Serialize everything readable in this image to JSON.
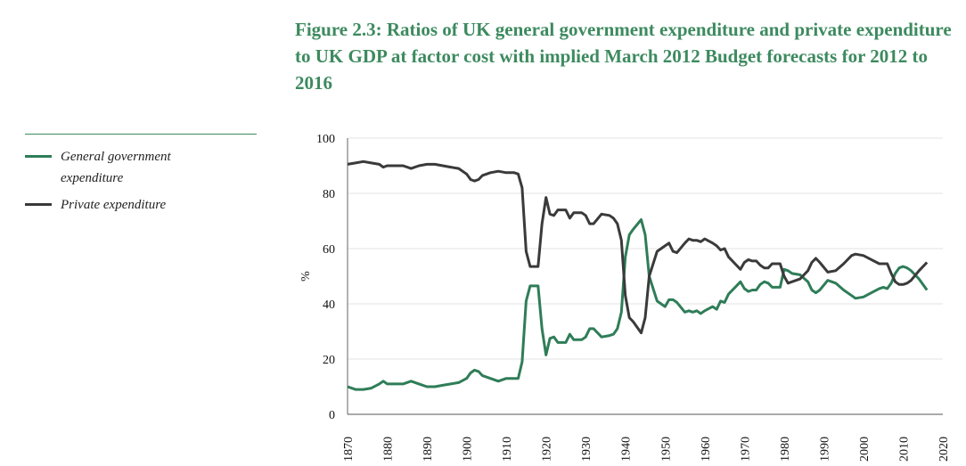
{
  "chart_data": {
    "type": "line",
    "title": "Figure 2.3: Ratios of UK general government expenditure and  private expenditure to UK GDP at factor cost with implied March 2012 Budget forecasts for 2012 to 2016",
    "xlabel": "",
    "ylabel": "%",
    "xlim": [
      1870,
      2020
    ],
    "ylim": [
      0,
      100
    ],
    "xticks": [
      "1870",
      "1880",
      "1890",
      "1900",
      "1910",
      "1920",
      "1930",
      "1940",
      "1950",
      "1960",
      "1970",
      "1980",
      "1990",
      "2000",
      "2010",
      "2020"
    ],
    "yticks": [
      "0",
      "20",
      "40",
      "60",
      "80",
      "100"
    ],
    "grid": "horizontal",
    "legend_placement": "left",
    "series": [
      {
        "name": "General government expenditure",
        "color": "#2f7d58",
        "points": [
          [
            1870,
            10
          ],
          [
            1872,
            9
          ],
          [
            1874,
            9
          ],
          [
            1876,
            9.5
          ],
          [
            1878,
            11
          ],
          [
            1879,
            12
          ],
          [
            1880,
            11
          ],
          [
            1882,
            11
          ],
          [
            1884,
            11
          ],
          [
            1886,
            12
          ],
          [
            1888,
            11
          ],
          [
            1890,
            10
          ],
          [
            1892,
            10
          ],
          [
            1894,
            10.5
          ],
          [
            1896,
            11
          ],
          [
            1898,
            11.5
          ],
          [
            1900,
            13
          ],
          [
            1901,
            15
          ],
          [
            1902,
            16
          ],
          [
            1903,
            15.5
          ],
          [
            1904,
            14
          ],
          [
            1906,
            13
          ],
          [
            1908,
            12
          ],
          [
            1910,
            13
          ],
          [
            1912,
            13
          ],
          [
            1913,
            13
          ],
          [
            1914,
            19
          ],
          [
            1915,
            41
          ],
          [
            1916,
            46.5
          ],
          [
            1918,
            46.5
          ],
          [
            1919,
            31
          ],
          [
            1920,
            21.5
          ],
          [
            1921,
            27.5
          ],
          [
            1922,
            28
          ],
          [
            1923,
            26
          ],
          [
            1925,
            26
          ],
          [
            1926,
            29
          ],
          [
            1927,
            27
          ],
          [
            1929,
            27
          ],
          [
            1930,
            28
          ],
          [
            1931,
            31
          ],
          [
            1932,
            31
          ],
          [
            1934,
            28
          ],
          [
            1936,
            28.5
          ],
          [
            1937,
            29
          ],
          [
            1938,
            31
          ],
          [
            1939,
            37
          ],
          [
            1940,
            57
          ],
          [
            1941,
            65
          ],
          [
            1942,
            67
          ],
          [
            1944,
            70.5
          ],
          [
            1945,
            65
          ],
          [
            1946,
            50
          ],
          [
            1948,
            41
          ],
          [
            1950,
            39
          ],
          [
            1951,
            41.5
          ],
          [
            1952,
            41.5
          ],
          [
            1953,
            40.5
          ],
          [
            1955,
            37
          ],
          [
            1956,
            37.5
          ],
          [
            1957,
            37
          ],
          [
            1958,
            37.5
          ],
          [
            1959,
            36.5
          ],
          [
            1960,
            37.5
          ],
          [
            1962,
            39
          ],
          [
            1963,
            38
          ],
          [
            1964,
            41
          ],
          [
            1965,
            40.5
          ],
          [
            1966,
            43.5
          ],
          [
            1968,
            46.5
          ],
          [
            1969,
            48
          ],
          [
            1970,
            45.5
          ],
          [
            1971,
            44.5
          ],
          [
            1972,
            45
          ],
          [
            1973,
            45
          ],
          [
            1974,
            47
          ],
          [
            1975,
            48
          ],
          [
            1976,
            47.5
          ],
          [
            1977,
            46
          ],
          [
            1979,
            46
          ],
          [
            1980,
            52.5
          ],
          [
            1981,
            52
          ],
          [
            1982,
            51
          ],
          [
            1984,
            50.5
          ],
          [
            1986,
            48
          ],
          [
            1987,
            45
          ],
          [
            1988,
            44
          ],
          [
            1989,
            45
          ],
          [
            1991,
            48.5
          ],
          [
            1992,
            48
          ],
          [
            1993,
            47.5
          ],
          [
            1995,
            45
          ],
          [
            1997,
            43
          ],
          [
            1998,
            42
          ],
          [
            2000,
            42.5
          ],
          [
            2002,
            44
          ],
          [
            2004,
            45.5
          ],
          [
            2005,
            46
          ],
          [
            2006,
            45.5
          ],
          [
            2007,
            47.5
          ],
          [
            2008,
            51
          ],
          [
            2009,
            53
          ],
          [
            2010,
            53.5
          ],
          [
            2011,
            53
          ],
          [
            2012,
            52
          ],
          [
            2014,
            49
          ],
          [
            2016,
            45
          ]
        ]
      },
      {
        "name": "Private expenditure",
        "color": "#3a3a3a",
        "points": [
          [
            1870,
            90.5
          ],
          [
            1872,
            91
          ],
          [
            1874,
            91.5
          ],
          [
            1876,
            91
          ],
          [
            1878,
            90.5
          ],
          [
            1879,
            89.5
          ],
          [
            1880,
            90
          ],
          [
            1882,
            90
          ],
          [
            1884,
            90
          ],
          [
            1886,
            89
          ],
          [
            1888,
            90
          ],
          [
            1890,
            90.5
          ],
          [
            1892,
            90.5
          ],
          [
            1894,
            90
          ],
          [
            1896,
            89.5
          ],
          [
            1898,
            89
          ],
          [
            1900,
            87
          ],
          [
            1901,
            85
          ],
          [
            1902,
            84.5
          ],
          [
            1903,
            85
          ],
          [
            1904,
            86.5
          ],
          [
            1906,
            87.5
          ],
          [
            1908,
            88
          ],
          [
            1910,
            87.5
          ],
          [
            1912,
            87.5
          ],
          [
            1913,
            87
          ],
          [
            1914,
            82
          ],
          [
            1915,
            59
          ],
          [
            1916,
            53.5
          ],
          [
            1918,
            53.5
          ],
          [
            1919,
            69
          ],
          [
            1920,
            78.5
          ],
          [
            1921,
            72.5
          ],
          [
            1922,
            72
          ],
          [
            1923,
            74
          ],
          [
            1925,
            74
          ],
          [
            1926,
            71
          ],
          [
            1927,
            73
          ],
          [
            1929,
            73
          ],
          [
            1930,
            72
          ],
          [
            1931,
            69
          ],
          [
            1932,
            69
          ],
          [
            1934,
            72.5
          ],
          [
            1936,
            72
          ],
          [
            1937,
            71
          ],
          [
            1938,
            69
          ],
          [
            1939,
            63
          ],
          [
            1940,
            43
          ],
          [
            1941,
            35
          ],
          [
            1942,
            33.5
          ],
          [
            1944,
            29.5
          ],
          [
            1945,
            35
          ],
          [
            1946,
            50
          ],
          [
            1948,
            59
          ],
          [
            1950,
            61
          ],
          [
            1951,
            62
          ],
          [
            1952,
            59
          ],
          [
            1953,
            58.5
          ],
          [
            1955,
            62
          ],
          [
            1956,
            63.5
          ],
          [
            1957,
            63
          ],
          [
            1958,
            63
          ],
          [
            1959,
            62.5
          ],
          [
            1960,
            63.5
          ],
          [
            1962,
            62
          ],
          [
            1963,
            61
          ],
          [
            1964,
            59.5
          ],
          [
            1965,
            60
          ],
          [
            1966,
            57
          ],
          [
            1968,
            54
          ],
          [
            1969,
            52.5
          ],
          [
            1970,
            55
          ],
          [
            1971,
            56
          ],
          [
            1972,
            55.5
          ],
          [
            1973,
            55.5
          ],
          [
            1974,
            54
          ],
          [
            1975,
            53
          ],
          [
            1976,
            53
          ],
          [
            1977,
            54.5
          ],
          [
            1979,
            54.5
          ],
          [
            1980,
            50
          ],
          [
            1981,
            47.5
          ],
          [
            1982,
            48
          ],
          [
            1984,
            49
          ],
          [
            1986,
            52
          ],
          [
            1987,
            55
          ],
          [
            1988,
            56.5
          ],
          [
            1989,
            55
          ],
          [
            1991,
            51.5
          ],
          [
            1993,
            52
          ],
          [
            1995,
            54.5
          ],
          [
            1997,
            57.5
          ],
          [
            1998,
            58
          ],
          [
            2000,
            57.5
          ],
          [
            2002,
            56
          ],
          [
            2004,
            54.5
          ],
          [
            2006,
            54.5
          ],
          [
            2007,
            51
          ],
          [
            2008,
            48
          ],
          [
            2009,
            47
          ],
          [
            2010,
            47
          ],
          [
            2011,
            47.5
          ],
          [
            2012,
            48.5
          ],
          [
            2014,
            52
          ],
          [
            2016,
            55
          ]
        ]
      }
    ]
  },
  "legend": {
    "items": [
      {
        "label_line1": "General government",
        "label_line2": "expenditure",
        "color": "#2f7d58"
      },
      {
        "label_line1": "Private expenditure",
        "color": "#3a3a3a"
      }
    ]
  }
}
